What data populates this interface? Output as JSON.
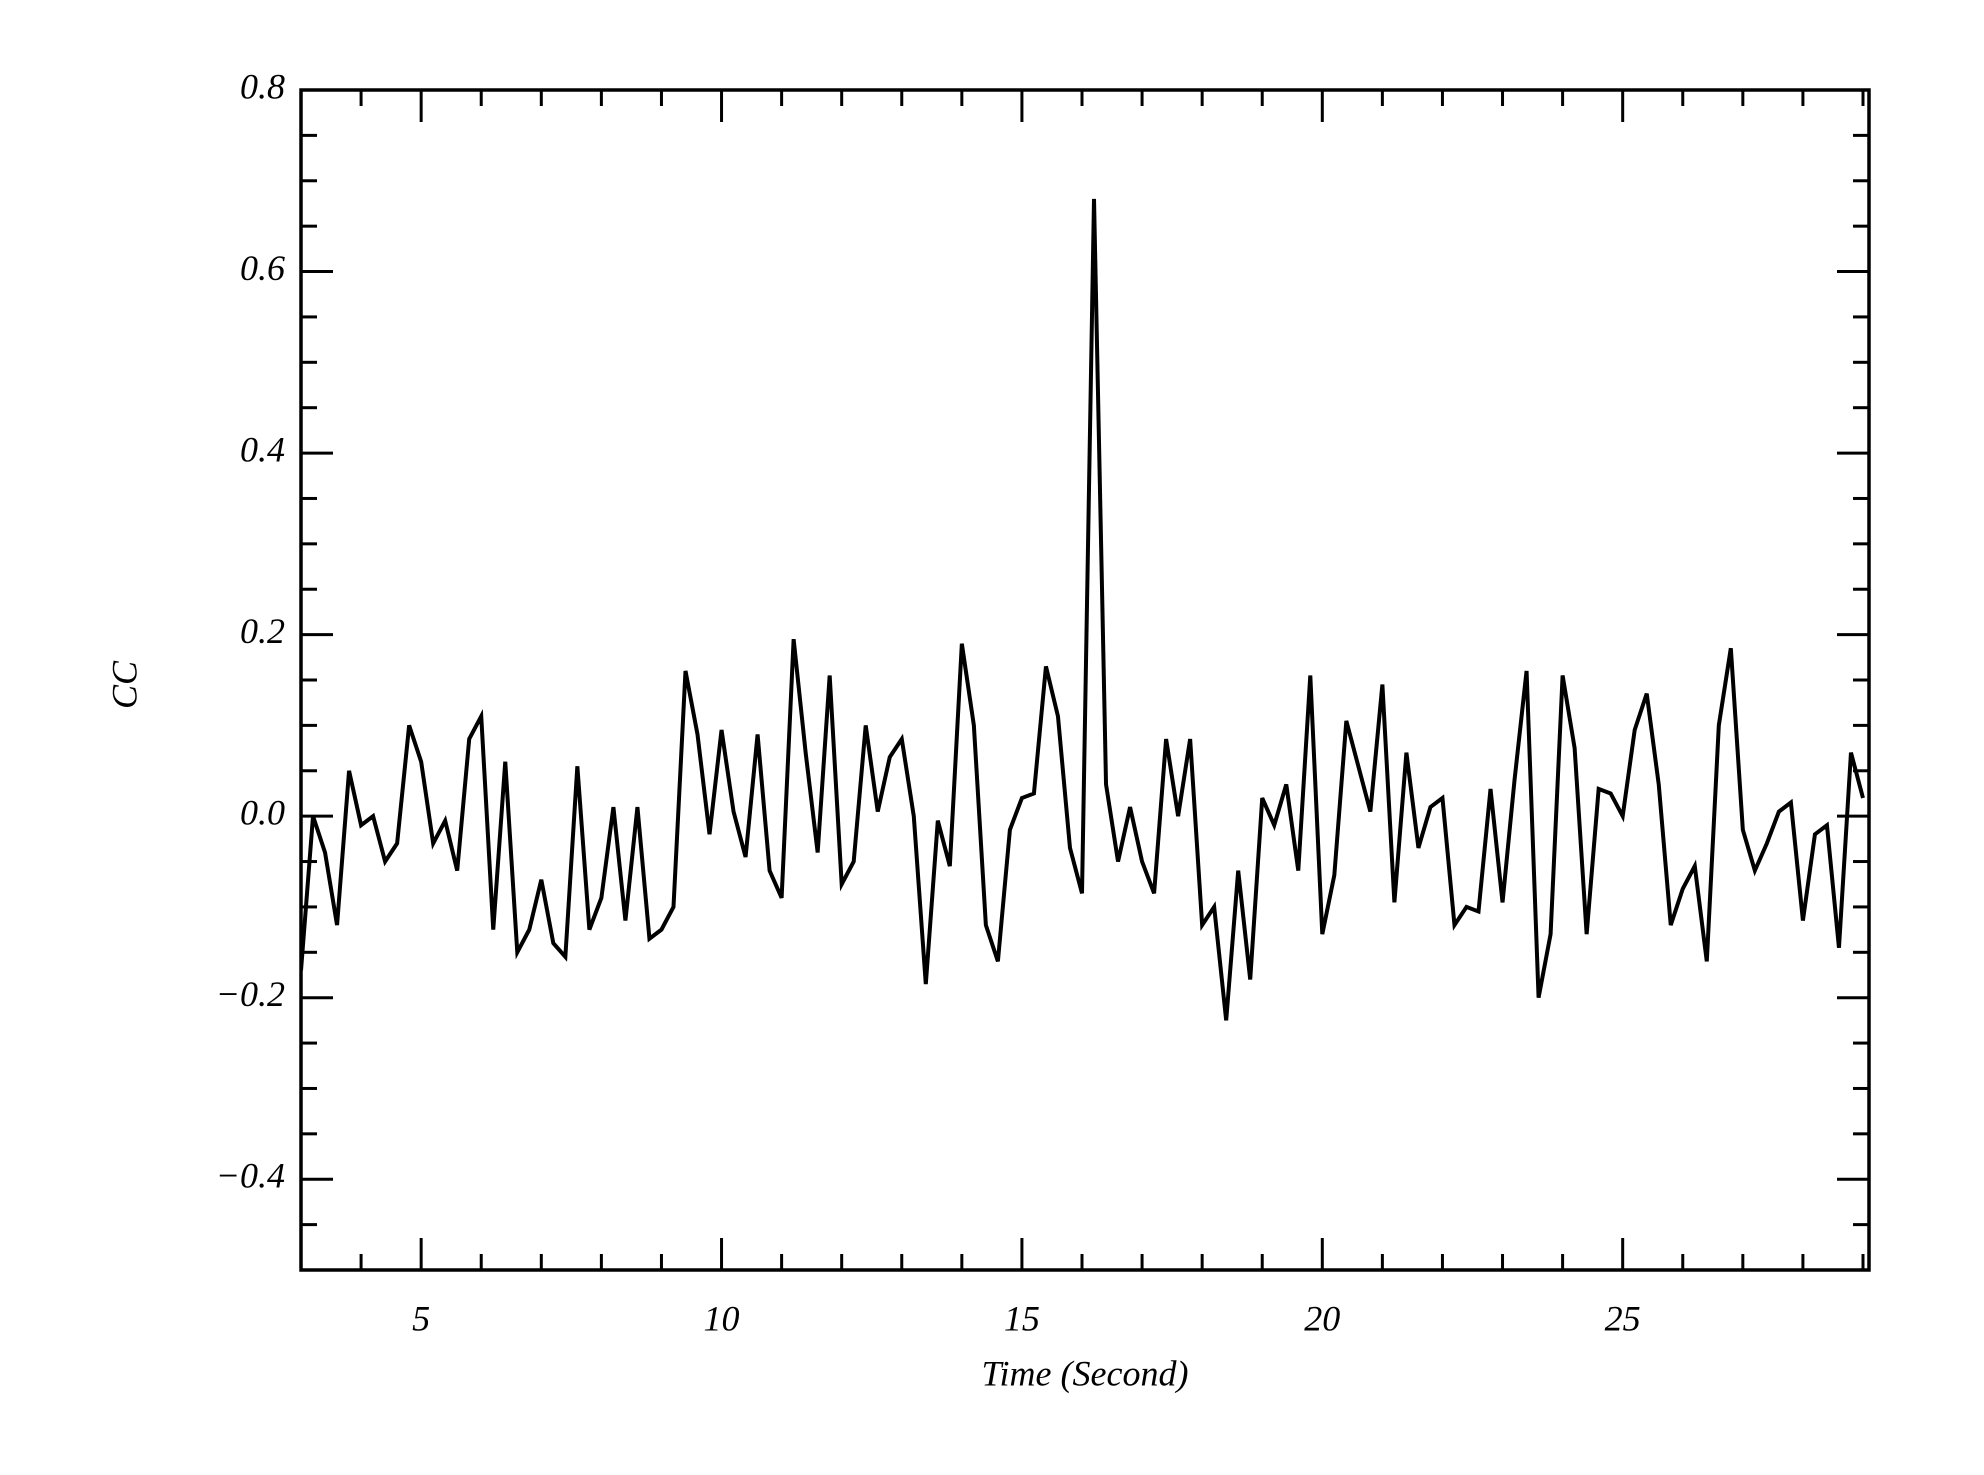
{
  "chart_data": {
    "type": "line",
    "xlabel": "Time (Second)",
    "ylabel": "CC",
    "xlim": [
      3,
      29.1
    ],
    "ylim": [
      -0.5,
      0.8
    ],
    "xticks": [
      5,
      10,
      15,
      20,
      25
    ],
    "yticks": [
      {
        "value": -0.4,
        "label": "−0.4"
      },
      {
        "value": -0.2,
        "label": "−0.2"
      },
      {
        "value": 0,
        "label": "0.0"
      },
      0.2,
      0.4,
      0.6,
      0.8
    ],
    "xminorticks": [
      4,
      6,
      7,
      8,
      9,
      11,
      12,
      13,
      14,
      16,
      17,
      18,
      19,
      21,
      22,
      23,
      24,
      26,
      27,
      28,
      29
    ],
    "yminorticks": [
      -0.45,
      -0.35,
      -0.3,
      -0.25,
      -0.15,
      -0.1,
      -0.05,
      0.05,
      0.1,
      0.15,
      0.25,
      0.3,
      0.35,
      0.45,
      0.5,
      0.55,
      0.65,
      0.7,
      0.75
    ],
    "series": [
      {
        "color": "#000000",
        "x": [
          3.0,
          3.2,
          3.4,
          3.6,
          3.8,
          4.0,
          4.2,
          4.4,
          4.6,
          4.8,
          5.0,
          5.2,
          5.4,
          5.6,
          5.8,
          6.0,
          6.2,
          6.4,
          6.6,
          6.8,
          7.0,
          7.2,
          7.4,
          7.6,
          7.8,
          8.0,
          8.2,
          8.4,
          8.6,
          8.8,
          9.0,
          9.2,
          9.4,
          9.6,
          9.8,
          10.0,
          10.2,
          10.4,
          10.6,
          10.8,
          11.0,
          11.2,
          11.4,
          11.6,
          11.8,
          12.0,
          12.2,
          12.4,
          12.6,
          12.8,
          13.0,
          13.2,
          13.4,
          13.6,
          13.8,
          14.0,
          14.2,
          14.4,
          14.6,
          14.8,
          15.0,
          15.2,
          15.4,
          15.6,
          15.8,
          16.0,
          16.2,
          16.4,
          16.6,
          16.8,
          17.0,
          17.2,
          17.4,
          17.6,
          17.8,
          18.0,
          18.2,
          18.4,
          18.6,
          18.8,
          19.0,
          19.2,
          19.4,
          19.6,
          19.8,
          20.0,
          20.2,
          20.4,
          20.6,
          20.8,
          21.0,
          21.2,
          21.4,
          21.6,
          21.8,
          22.0,
          22.2,
          22.4,
          22.6,
          22.8,
          23.0,
          23.2,
          23.4,
          23.6,
          23.8,
          24.0,
          24.2,
          24.4,
          24.6,
          24.8,
          25.0,
          25.2,
          25.4,
          25.6,
          25.8,
          26.0,
          26.2,
          26.4,
          26.6,
          26.8,
          27.0,
          27.2,
          27.4,
          27.6,
          27.8,
          28.0,
          28.2,
          28.4,
          28.6,
          28.8,
          29.0
        ],
        "values": [
          -0.17,
          0.0,
          -0.04,
          -0.12,
          0.05,
          -0.01,
          0.0,
          -0.05,
          -0.03,
          0.1,
          0.06,
          -0.03,
          -0.005,
          -0.06,
          0.085,
          0.11,
          -0.125,
          0.06,
          -0.15,
          -0.125,
          -0.07,
          -0.14,
          -0.155,
          0.055,
          -0.125,
          -0.09,
          0.01,
          -0.115,
          0.01,
          -0.135,
          -0.125,
          -0.1,
          0.16,
          0.09,
          -0.02,
          0.095,
          0.005,
          -0.045,
          0.09,
          -0.06,
          -0.09,
          0.195,
          0.07,
          -0.04,
          0.155,
          -0.075,
          -0.05,
          0.1,
          0.005,
          0.065,
          0.085,
          0.0,
          -0.185,
          -0.005,
          -0.055,
          0.19,
          0.1,
          -0.12,
          -0.16,
          -0.015,
          0.02,
          0.025,
          0.165,
          0.11,
          -0.035,
          -0.085,
          0.68,
          0.035,
          -0.05,
          0.01,
          -0.05,
          -0.085,
          0.085,
          0.0,
          0.085,
          -0.12,
          -0.1,
          -0.225,
          -0.06,
          -0.18,
          0.02,
          -0.01,
          0.035,
          -0.06,
          0.155,
          -0.13,
          -0.065,
          0.105,
          0.055,
          0.005,
          0.145,
          -0.095,
          0.07,
          -0.035,
          0.01,
          0.02,
          -0.12,
          -0.1,
          -0.105,
          0.03,
          -0.095,
          0.04,
          0.16,
          -0.2,
          -0.13,
          0.155,
          0.075,
          -0.13,
          0.03,
          0.025,
          0.0,
          0.095,
          0.135,
          0.035,
          -0.12,
          -0.08,
          -0.055,
          -0.16,
          0.1,
          0.185,
          -0.015,
          -0.06,
          -0.03,
          0.005,
          0.015,
          -0.115,
          -0.02,
          -0.01,
          -0.145,
          0.07,
          0.02
        ]
      }
    ]
  }
}
